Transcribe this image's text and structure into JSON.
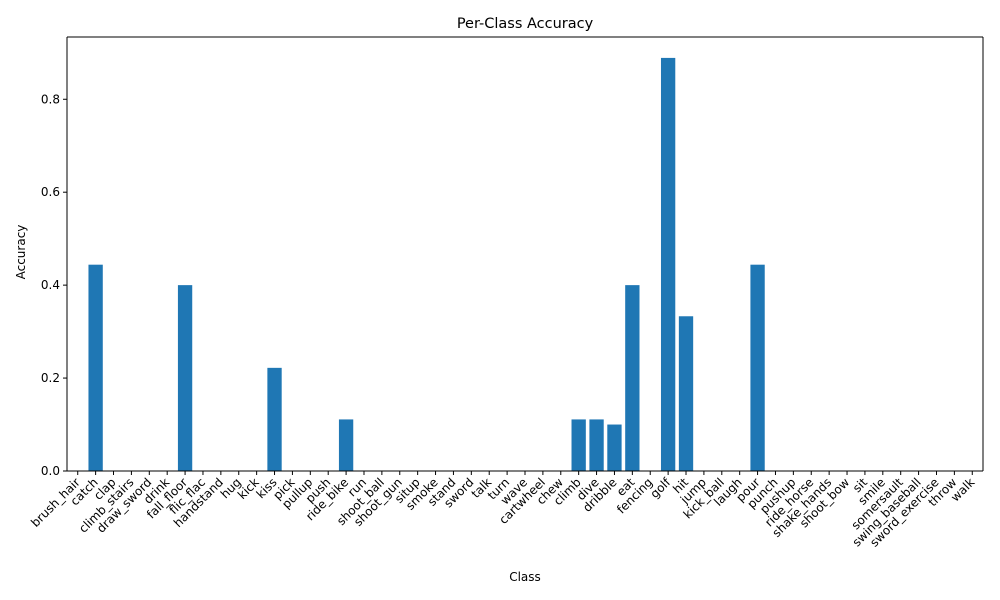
{
  "chart_data": {
    "type": "bar",
    "title": "Per-Class Accuracy",
    "xlabel": "Class",
    "ylabel": "Accuracy",
    "ylim": [
      0,
      0.934
    ],
    "yticks": [
      0.0,
      0.2,
      0.4,
      0.6,
      0.8
    ],
    "ytick_labels": [
      "0.0",
      "0.2",
      "0.4",
      "0.6",
      "0.8"
    ],
    "bar_color": "#1f77b4",
    "grid": false,
    "categories": [
      "brush_hair",
      "catch",
      "clap",
      "climb_stairs",
      "draw_sword",
      "drink",
      "fall_floor",
      "flic_flac",
      "handstand",
      "hug",
      "kick",
      "kiss",
      "pick",
      "pullup",
      "push",
      "ride_bike",
      "run",
      "shoot_ball",
      "shoot_gun",
      "situp",
      "smoke",
      "stand",
      "sword",
      "talk",
      "turn",
      "wave",
      "cartwheel",
      "chew",
      "climb",
      "dive",
      "dribble",
      "eat",
      "fencing",
      "golf",
      "hit",
      "jump",
      "kick_ball",
      "laugh",
      "pour",
      "punch",
      "pushup",
      "ride_horse",
      "shake_hands",
      "shoot_bow",
      "sit",
      "smile",
      "somersault",
      "swing_baseball",
      "sword_exercise",
      "throw",
      "walk"
    ],
    "values": [
      0,
      0.444,
      0,
      0,
      0,
      0,
      0.4,
      0,
      0,
      0,
      0,
      0.222,
      0,
      0,
      0,
      0.111,
      0,
      0,
      0,
      0,
      0,
      0,
      0,
      0,
      0,
      0,
      0,
      0,
      0.111,
      0.111,
      0.1,
      0.4,
      0,
      0.889,
      0.333,
      0,
      0,
      0,
      0.444,
      0,
      0,
      0,
      0,
      0,
      0,
      0,
      0,
      0,
      0,
      0,
      0
    ]
  }
}
